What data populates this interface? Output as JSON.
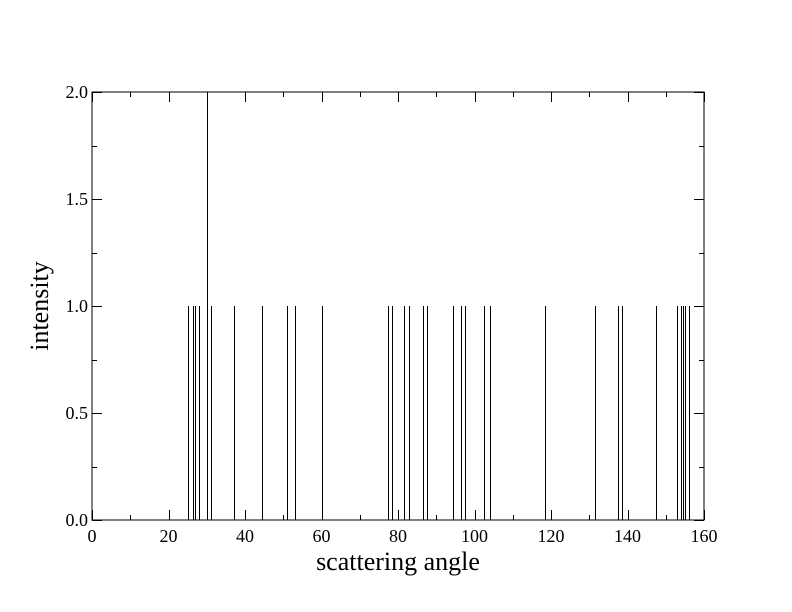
{
  "chart_data": {
    "type": "bar",
    "title": "",
    "xlabel": "scattering angle",
    "ylabel": "intensity",
    "xlim": [
      0,
      160
    ],
    "ylim": [
      0,
      2.0
    ],
    "x_ticks": [
      0,
      20,
      40,
      60,
      80,
      100,
      120,
      140,
      160
    ],
    "x_tick_labels": [
      "0",
      "20",
      "40",
      "60",
      "80",
      "100",
      "120",
      "140",
      "160"
    ],
    "y_ticks": [
      0,
      0.5,
      1.0,
      1.5,
      2.0
    ],
    "y_tick_labels": [
      "0.0",
      "0.5",
      "1.0",
      "1.5",
      "2.0"
    ],
    "grid": false,
    "color": "#000000",
    "x": [
      25.0,
      26.5,
      27.0,
      28.0,
      30.0,
      31.0,
      37.0,
      44.5,
      51.0,
      53.0,
      60.0,
      77.5,
      78.5,
      81.5,
      83.0,
      86.5,
      87.5,
      94.5,
      96.5,
      97.5,
      102.5,
      104.0,
      118.5,
      131.5,
      137.5,
      138.5,
      147.5,
      153.0,
      154.0,
      154.5,
      155.0,
      156.0
    ],
    "values": [
      1,
      1,
      1,
      1,
      2,
      1,
      1,
      1,
      1,
      1,
      1,
      1,
      1,
      1,
      1,
      1,
      1,
      1,
      1,
      1,
      1,
      1,
      1,
      1,
      1,
      1,
      1,
      1,
      1,
      1,
      1,
      1
    ]
  }
}
